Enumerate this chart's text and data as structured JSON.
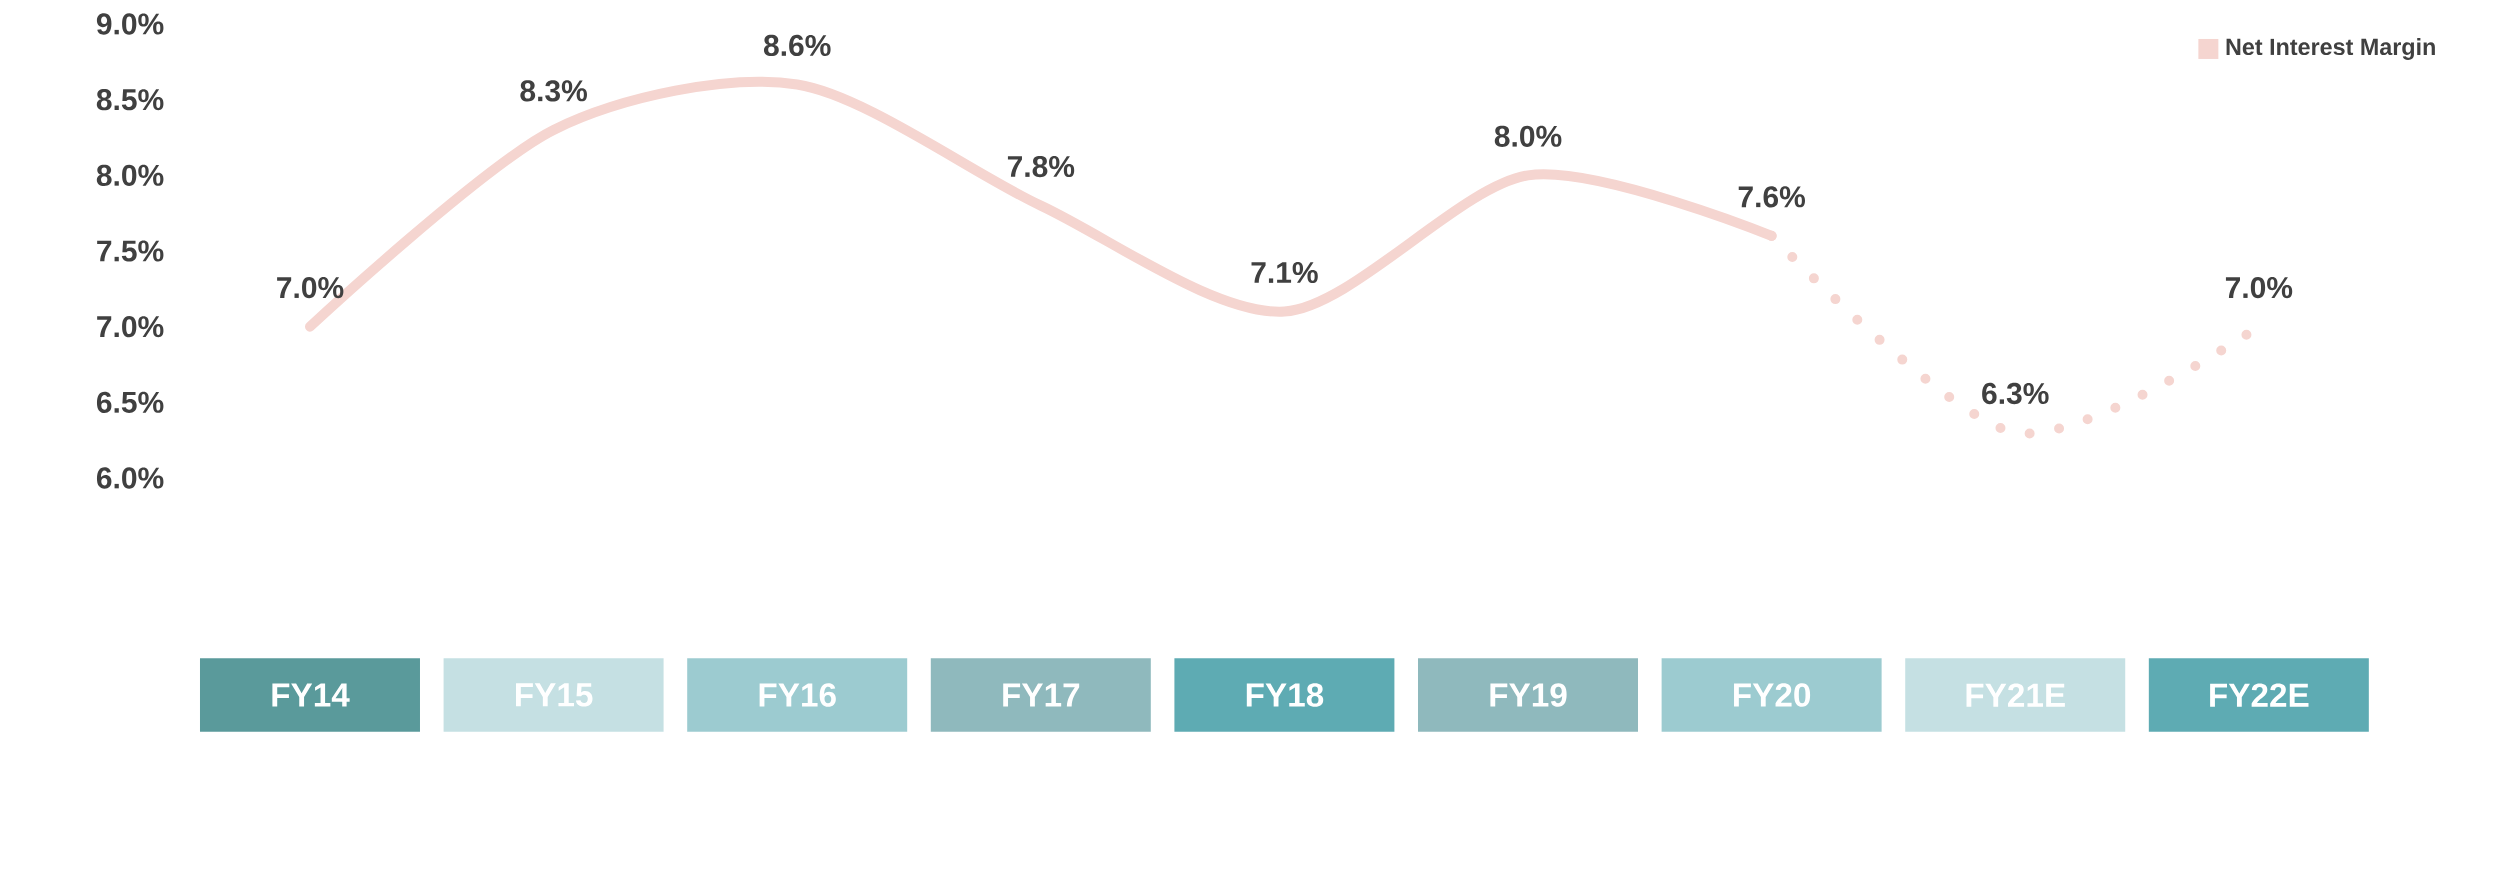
{
  "chart_data": {
    "type": "line",
    "categories": [
      "FY14",
      "FY15",
      "FY16",
      "FY17",
      "FY18",
      "FY19",
      "FY20",
      "FY21E",
      "FY22E"
    ],
    "series": [
      {
        "name": "Net Interest Margin",
        "color": "#f5d5d0",
        "line_style": "solid",
        "values": [
          7.0,
          8.3,
          8.6,
          7.8,
          7.1,
          8.0,
          7.6,
          null,
          null
        ],
        "value_labels": [
          "7.0%",
          "8.3%",
          "8.6%",
          "7.8%",
          "7.1%",
          "8.0%",
          "7.6%",
          null,
          null
        ]
      },
      {
        "color": "#f5d5d0",
        "line_style": "dotted",
        "values": [
          null,
          null,
          null,
          null,
          null,
          null,
          7.6,
          6.3,
          7.0
        ],
        "value_labels": [
          null,
          null,
          null,
          null,
          null,
          null,
          null,
          "6.3%",
          "7.0%"
        ]
      }
    ],
    "ylim": [
      6.0,
      9.0
    ],
    "yticks": [
      {
        "value": 6.0,
        "label": "6.0%"
      },
      {
        "value": 6.5,
        "label": "6.5%"
      },
      {
        "value": 7.0,
        "label": "7.0%"
      },
      {
        "value": 7.5,
        "label": "7.5%"
      },
      {
        "value": 8.0,
        "label": "8.0%"
      },
      {
        "value": 8.5,
        "label": "8.5%"
      },
      {
        "value": 9.0,
        "label": "9.0%"
      }
    ],
    "legend": "top right"
  }
}
